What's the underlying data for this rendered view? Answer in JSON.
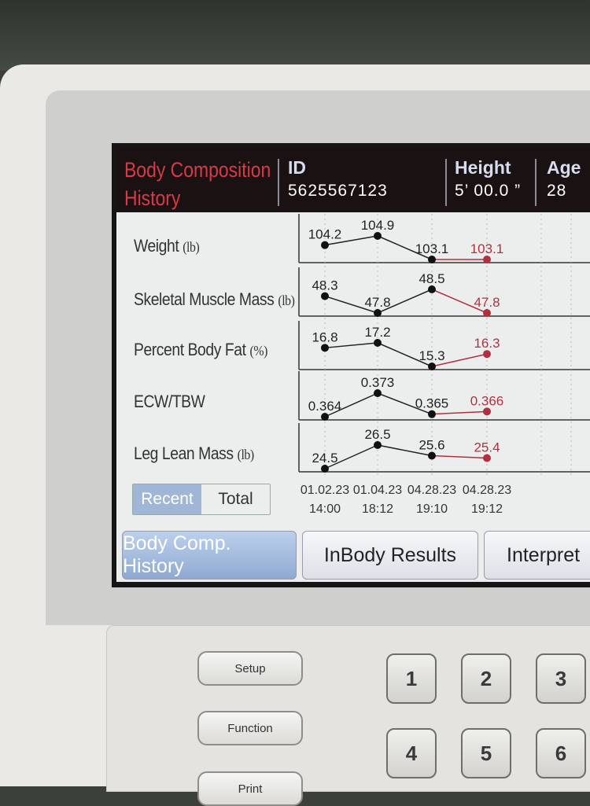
{
  "header": {
    "title_line1": "Body Composition",
    "title_line2": "History",
    "id_label": "ID",
    "id_value": "5625567123",
    "height_label": "Height",
    "height_value": "5’ 00.0 ”",
    "age_label": "Age",
    "age_value": "28"
  },
  "colors": {
    "title": "#d93a48",
    "history_line": "#222222",
    "latest_line": "#b03040"
  },
  "rows": [
    {
      "label": "Weight",
      "unit": "(lb)",
      "values": [
        "104.2",
        "104.9",
        "103.1",
        "103.1"
      ]
    },
    {
      "label": "Skeletal Muscle Mass",
      "unit": "(lb)",
      "values": [
        "48.3",
        "47.8",
        "48.5",
        "47.8"
      ]
    },
    {
      "label": "Percent Body Fat",
      "unit": "(%)",
      "values": [
        "16.8",
        "17.2",
        "15.3",
        "16.3"
      ]
    },
    {
      "label": "ECW/TBW",
      "unit": "",
      "values": [
        "0.364",
        "0.373",
        "0.365",
        "0.366"
      ]
    },
    {
      "label": "Leg Lean Mass",
      "unit": "(lb)",
      "values": [
        "24.5",
        "26.5",
        "25.6",
        "25.4"
      ]
    }
  ],
  "dates": [
    {
      "date": "01.02.23",
      "time": "14:00"
    },
    {
      "date": "01.04.23",
      "time": "18:12"
    },
    {
      "date": "04.28.23",
      "time": "19:10"
    },
    {
      "date": "04.28.23",
      "time": "19:12"
    }
  ],
  "toggle": {
    "recent": "Recent",
    "total": "Total",
    "selected": "Recent"
  },
  "tabs": [
    {
      "label": "Body Comp. History",
      "active": true
    },
    {
      "label": "InBody Results",
      "active": false
    },
    {
      "label": "Interpret",
      "active": false
    }
  ],
  "keypad": {
    "setup": "Setup",
    "function": "Function",
    "print": "Print",
    "keys": [
      "1",
      "2",
      "3",
      "4",
      "5",
      "6"
    ]
  }
}
